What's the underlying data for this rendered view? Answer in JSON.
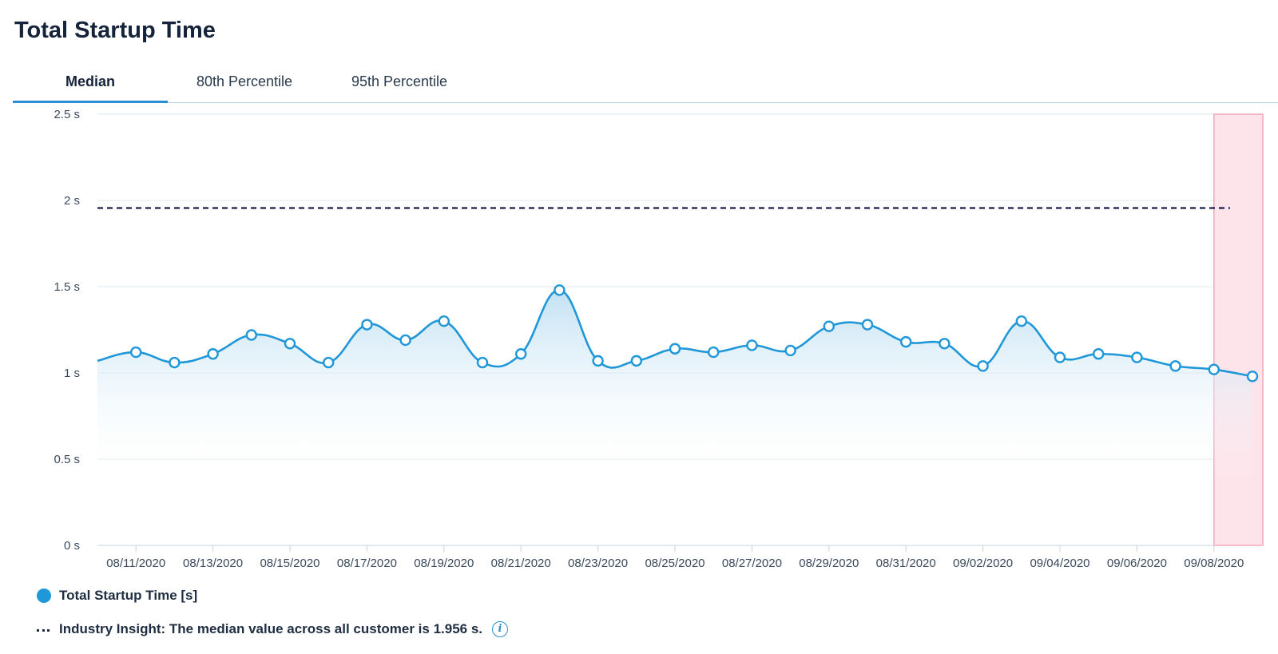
{
  "title": "Total Startup Time",
  "tabs": [
    {
      "label": "Median",
      "active": true
    },
    {
      "label": "80th Percentile",
      "active": false
    },
    {
      "label": "95th Percentile",
      "active": false
    }
  ],
  "legend": {
    "series_label": "Total Startup Time [s]",
    "insight_label": "Industry Insight: The median value across all customer is 1.956 s.",
    "info_icon": "info-icon"
  },
  "colors": {
    "series": "#1f97d8",
    "area_top": "#bfe0f3",
    "reference_line": "#1a1f4d",
    "highlight": "#fde4ea",
    "highlight_border": "#f4a9bb",
    "tab_accent": "#2a8fd0"
  },
  "chart_data": {
    "type": "area",
    "y_tick_labels": [
      "0 s",
      "0.5 s",
      "1 s",
      "1.5 s",
      "2 s",
      "2.5 s"
    ],
    "y_ticks": [
      0,
      0.5,
      1,
      1.5,
      2,
      2.5
    ],
    "ylim": [
      0,
      2.5
    ],
    "grid": true,
    "x_tick_labels": [
      "08/11/2020",
      "08/13/2020",
      "08/15/2020",
      "08/17/2020",
      "08/19/2020",
      "08/21/2020",
      "08/23/2020",
      "08/25/2020",
      "08/27/2020",
      "08/29/2020",
      "08/31/2020",
      "09/02/2020",
      "09/04/2020",
      "09/06/2020",
      "09/08/2020"
    ],
    "reference_line": {
      "value": 1.956,
      "style": "dashed"
    },
    "highlight_range": {
      "from": "09/08/2020",
      "to": "09/09/2020"
    },
    "series": [
      {
        "name": "Total Startup Time [s]",
        "points": [
          {
            "x": "08/10/2020",
            "y": 1.07
          },
          {
            "x": "08/11/2020",
            "y": 1.12
          },
          {
            "x": "08/12/2020",
            "y": 1.06
          },
          {
            "x": "08/13/2020",
            "y": 1.11
          },
          {
            "x": "08/14/2020",
            "y": 1.22
          },
          {
            "x": "08/15/2020",
            "y": 1.17
          },
          {
            "x": "08/16/2020",
            "y": 1.06
          },
          {
            "x": "08/17/2020",
            "y": 1.28
          },
          {
            "x": "08/18/2020",
            "y": 1.19
          },
          {
            "x": "08/19/2020",
            "y": 1.3
          },
          {
            "x": "08/20/2020",
            "y": 1.06
          },
          {
            "x": "08/21/2020",
            "y": 1.11
          },
          {
            "x": "08/22/2020",
            "y": 1.48
          },
          {
            "x": "08/23/2020",
            "y": 1.07
          },
          {
            "x": "08/24/2020",
            "y": 1.07
          },
          {
            "x": "08/25/2020",
            "y": 1.14
          },
          {
            "x": "08/26/2020",
            "y": 1.12
          },
          {
            "x": "08/27/2020",
            "y": 1.16
          },
          {
            "x": "08/28/2020",
            "y": 1.13
          },
          {
            "x": "08/29/2020",
            "y": 1.27
          },
          {
            "x": "08/30/2020",
            "y": 1.28
          },
          {
            "x": "08/31/2020",
            "y": 1.18
          },
          {
            "x": "09/01/2020",
            "y": 1.17
          },
          {
            "x": "09/02/2020",
            "y": 1.04
          },
          {
            "x": "09/03/2020",
            "y": 1.3
          },
          {
            "x": "09/04/2020",
            "y": 1.09
          },
          {
            "x": "09/05/2020",
            "y": 1.11
          },
          {
            "x": "09/06/2020",
            "y": 1.09
          },
          {
            "x": "09/07/2020",
            "y": 1.04
          },
          {
            "x": "09/08/2020",
            "y": 1.02
          },
          {
            "x": "09/09/2020",
            "y": 0.98
          }
        ]
      }
    ]
  }
}
